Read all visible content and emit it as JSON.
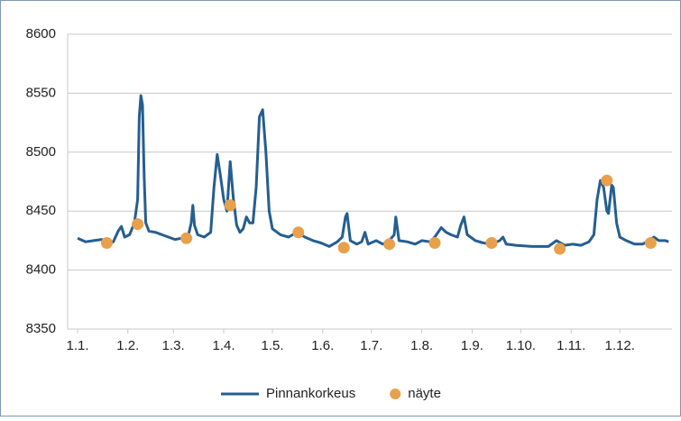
{
  "chart_data": {
    "type": "line",
    "xlim": [
      0,
      365
    ],
    "ylim": [
      8350,
      8600
    ],
    "yticks": [
      8350,
      8400,
      8450,
      8500,
      8550,
      8600
    ],
    "xticks": [
      {
        "value": 0,
        "label": "1.1."
      },
      {
        "value": 31,
        "label": "1.2."
      },
      {
        "value": 59,
        "label": "1.3."
      },
      {
        "value": 90,
        "label": "1.4."
      },
      {
        "value": 120,
        "label": "1.5."
      },
      {
        "value": 151,
        "label": "1.6."
      },
      {
        "value": 181,
        "label": "1.7."
      },
      {
        "value": 212,
        "label": "1.8."
      },
      {
        "value": 243,
        "label": "1.9."
      },
      {
        "value": 273,
        "label": "1.10."
      },
      {
        "value": 304,
        "label": "1.11."
      },
      {
        "value": 334,
        "label": "1.12."
      }
    ],
    "grid": true,
    "legend": "bottom",
    "series": [
      {
        "name": "Pinnankorkeus",
        "type": "line",
        "color": "#255e91",
        "x": [
          0,
          5,
          10,
          15,
          18,
          22,
          25,
          27,
          29,
          32,
          35,
          37,
          38,
          39,
          40,
          41,
          42,
          44,
          48,
          52,
          56,
          60,
          64,
          68,
          70,
          71,
          72,
          74,
          78,
          82,
          84,
          86,
          88,
          90,
          92,
          94,
          96,
          98,
          100,
          102,
          104,
          106,
          108,
          110,
          112,
          114,
          116,
          118,
          120,
          125,
          130,
          135,
          140,
          145,
          150,
          155,
          160,
          163,
          165,
          166,
          168,
          172,
          175,
          177,
          179,
          184,
          188,
          192,
          195,
          196,
          198,
          203,
          208,
          212,
          217,
          220,
          224,
          227,
          230,
          234,
          236,
          238,
          240,
          245,
          250,
          255,
          260,
          262,
          264,
          270,
          280,
          290,
          295,
          300,
          305,
          310,
          315,
          318,
          320,
          322,
          324,
          326,
          327,
          329,
          330,
          332,
          334,
          338,
          343,
          348,
          352,
          355,
          358,
          362,
          364
        ],
        "values": [
          8427,
          8424,
          8425,
          8426,
          8422,
          8424,
          8433,
          8437,
          8428,
          8430,
          8440,
          8460,
          8530,
          8548,
          8540,
          8480,
          8440,
          8433,
          8432,
          8430,
          8428,
          8426,
          8427,
          8428,
          8440,
          8455,
          8438,
          8430,
          8428,
          8432,
          8470,
          8498,
          8480,
          8460,
          8450,
          8492,
          8460,
          8438,
          8432,
          8435,
          8445,
          8440,
          8440,
          8470,
          8530,
          8536,
          8500,
          8450,
          8435,
          8430,
          8428,
          8432,
          8428,
          8425,
          8423,
          8420,
          8424,
          8428,
          8445,
          8448,
          8425,
          8422,
          8424,
          8432,
          8422,
          8425,
          8422,
          8425,
          8430,
          8445,
          8425,
          8424,
          8422,
          8425,
          8424,
          8428,
          8436,
          8432,
          8430,
          8428,
          8438,
          8445,
          8430,
          8425,
          8423,
          8422,
          8425,
          8428,
          8422,
          8421,
          8420,
          8420,
          8425,
          8421,
          8422,
          8421,
          8424,
          8430,
          8460,
          8476,
          8470,
          8450,
          8448,
          8472,
          8470,
          8440,
          8428,
          8425,
          8422,
          8422,
          8425,
          8428,
          8425,
          8425,
          8424
        ]
      },
      {
        "name": "näyte",
        "type": "scatter",
        "color": "#e8a04c",
        "x": [
          18,
          37,
          67,
          94,
          136,
          164,
          192,
          220,
          255,
          297,
          326,
          353
        ],
        "values": [
          8423,
          8439,
          8427,
          8455,
          8432,
          8419,
          8422,
          8423,
          8423,
          8418,
          8476,
          8423
        ]
      }
    ]
  }
}
